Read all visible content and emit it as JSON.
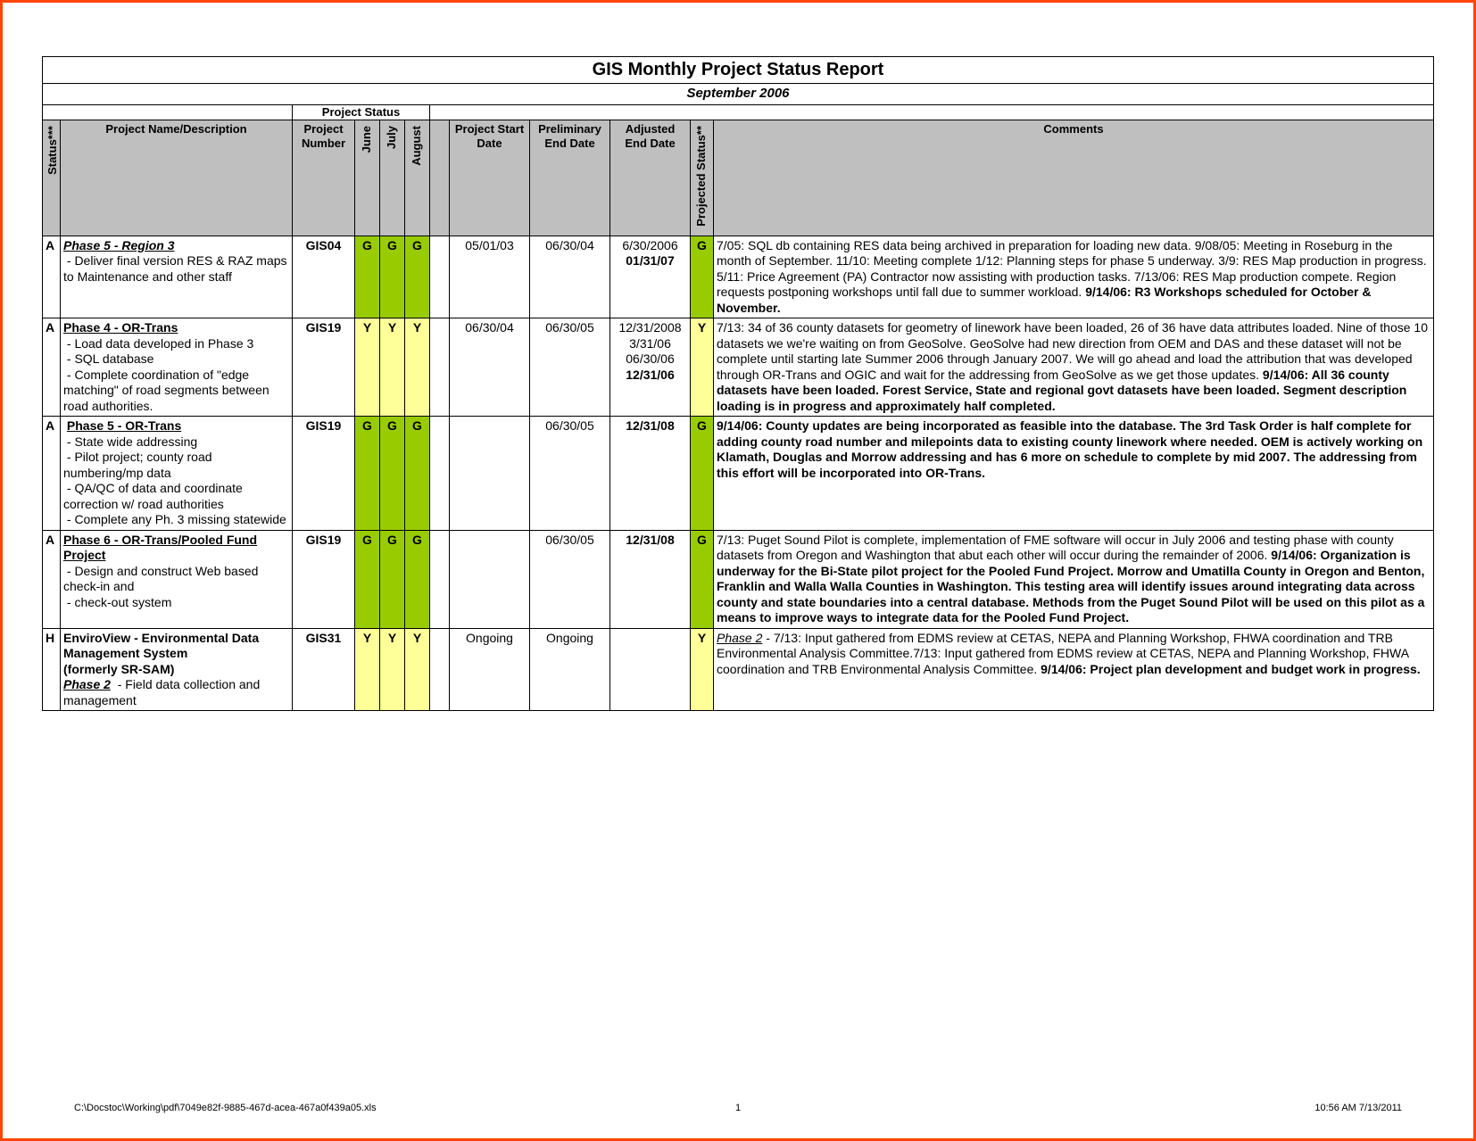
{
  "report": {
    "title": "GIS Monthly Project Status Report",
    "subtitle": "September 2006",
    "group_label": "Project Status"
  },
  "headers": {
    "status": "Status***",
    "name": "Project Name/Description",
    "proj_num": "Project Number",
    "june": "June",
    "july": "July",
    "august": "August",
    "start": "Project Start Date",
    "prelim": "Preliminary End Date",
    "adj": "Adjusted End Date",
    "proj_stat": "Projected Status**",
    "comments": "Comments"
  },
  "status_colors": {
    "G": "#99cc00",
    "Y": "#ffff99"
  },
  "rows": [
    {
      "status": "A",
      "name_html": "<span class='proj-title-i'>Phase 5 - Region 3</span><br>&nbsp;- Deliver final version RES & RAZ maps to Maintenance and other staff",
      "proj_num": "GIS04",
      "june": "G",
      "july": "G",
      "august": "G",
      "start": "05/01/03",
      "prelim": "06/30/04",
      "adj_html": "6/30/2006<br><b>01/31/07</b>",
      "proj_stat": "G",
      "comments_html": "7/05: SQL db containing RES data being archived in preparation for loading new data.  9/08/05:  Meeting in Roseburg in the month of September.  11/10: Meeting complete 1/12: Planning steps for phase 5 underway.  3/9: RES Map production in progress. 5/11: Price Agreement (PA) Contractor now assisting with production tasks.  7/13/06: RES Map production compete. Region requests postponing workshops until fall due to summer workload. <b>9/14/06: R3 Workshops scheduled for October & November.</b>"
    },
    {
      "status": "A",
      "name_html": "<span class='proj-title'>Phase 4 - OR-Trans</span><br>&nbsp;- Load data developed in Phase 3<br>&nbsp;- SQL database<br>&nbsp;-  Complete coordination of \"edge matching\" of road segments between road authorities.",
      "proj_num": "GIS19",
      "june": "Y",
      "july": "Y",
      "august": "Y",
      "start": "06/30/04",
      "prelim": "06/30/05",
      "adj_html": "12/31/2008<br>3/31/06<br>06/30/06<br><b>12/31/06</b>",
      "proj_stat": "Y",
      "comments_html": "7/13: 34 of 36 county datasets for geometry of linework have been loaded, 26 of 36 have data attributes loaded.  Nine of those 10 datasets we we're waiting on from GeoSolve.  GeoSolve had new direction from OEM and DAS and these dataset will not be complete until starting late Summer 2006 through January 2007.  We will go ahead and load the attribution that was developed through OR-Trans and OGIC and wait for the addressing from GeoSolve as we get those updates.  <b>9/14/06: All 36 county datasets have been loaded.  Forest Service, State and regional govt datasets have been loaded.  Segment description loading is in progress and approximately half completed.</b>"
    },
    {
      "status": "A",
      "name_html": "&nbsp;<span class='proj-title'>Phase 5 - OR-Trans</span><br>&nbsp;- State wide addressing<br>&nbsp;- Pilot project; county road numbering/mp data<br>&nbsp;- QA/QC of data and coordinate correction w/ road authorities<br>&nbsp;- Complete any Ph. 3 missing statewide",
      "proj_num": "GIS19",
      "june": "G",
      "july": "G",
      "august": "G",
      "start": "",
      "prelim": "06/30/05",
      "adj_html": "<b>12/31/08</b>",
      "proj_stat": "G",
      "comments_html": "<b>9/14/06: County updates are being incorporated as feasible into the database.  The 3rd Task Order is half complete for adding county road number and milepoints data to existing county linework where needed.  OEM is actively working on Klamath, Douglas and Morrow addressing and has 6 more on schedule to complete by mid 2007.  The addressing from this effort will be incorporated into OR-Trans.</b>"
    },
    {
      "status": "A",
      "name_html": "<span class='proj-title'>Phase 6 - OR-Trans/Pooled Fund Project</span>&nbsp;<br>&nbsp;- Design and construct Web based check-in and<br>&nbsp;- check-out system",
      "proj_num": "GIS19",
      "june": "G",
      "july": "G",
      "august": "G",
      "start": "",
      "prelim": "06/30/05",
      "adj_html": "<b>12/31/08</b>",
      "proj_stat": "G",
      "comments_html": "7/13: Puget Sound Pilot is complete, implementation of FME software will occur in July 2006 and  testing phase with county datasets from Oregon and Washington that abut each other will occur during the remainder of 2006. <b>9/14/06: Organization is underway for the Bi-State pilot project for the Pooled Fund Project.  Morrow and Umatilla County in Oregon and Benton, Franklin and Walla Walla Counties in Washington.  This testing area will identify issues around integrating data across county and state boundaries into a central database.  Methods from the Puget Sound Pilot will be used on this pilot as a means to improve ways to integrate data for the Pooled Fund Project.</b>"
    },
    {
      "status": "H",
      "name_html": "<b>EnviroView - Environmental Data Management System<br>(formerly SR-SAM)</b><br><span class='proj-title-i'>Phase 2</span>&nbsp; - Field data collection and management",
      "proj_num": "GIS31",
      "june": "Y",
      "july": "Y",
      "august": "Y",
      "start": "Ongoing",
      "prelim": "Ongoing",
      "adj_html": "",
      "proj_stat": "Y",
      "comments_html": "<i><u>Phase 2</u></i> - 7/13: Input gathered from EDMS review at CETAS, NEPA and Planning Workshop, FHWA coordination and TRB Environmental Analysis Committee.7/13: Input gathered from EDMS review at CETAS, NEPA and Planning Workshop, FHWA coordination and TRB Environmental Analysis Committee. <b>9/14/06: Project plan development and budget work in progress.</b>"
    }
  ],
  "footer": {
    "path": "C:\\Docstoc\\Working\\pdf\\7049e82f-9885-467d-acea-467a0f439a05.xls",
    "page": "1",
    "time": "10:56 AM   7/13/2011"
  }
}
